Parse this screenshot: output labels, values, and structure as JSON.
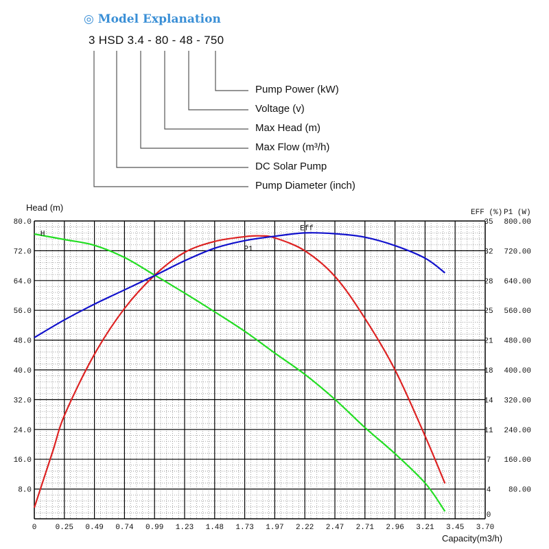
{
  "model": {
    "title": "Model Explanation",
    "code": "3 HSD 3.4 - 80 - 48 - 750",
    "explanations": [
      "Pump Power (kW)",
      "Voltage (v)",
      "Max Head (m)",
      "Max Flow (m³/h)",
      "DC Solar Pump",
      "Pump Diameter (inch)"
    ]
  },
  "chart_data": {
    "type": "line",
    "title": "",
    "xlabel": "Capacity(m3/h)",
    "ylabel": "Head (m)",
    "y2label": "EFF (%)",
    "y3label": "P1 (W)",
    "xlim": [
      0,
      3.7
    ],
    "ylim": [
      0,
      80
    ],
    "y2lim": [
      0,
      35
    ],
    "y3lim": [
      0,
      800
    ],
    "x_ticks": [
      "0",
      "0.25",
      "0.49",
      "0.74",
      "0.99",
      "1.23",
      "1.48",
      "1.73",
      "1.97",
      "2.22",
      "2.47",
      "2.71",
      "2.96",
      "3.21",
      "3.45",
      "3.70"
    ],
    "y_ticks": [
      "80.0",
      "72.0",
      "64.0",
      "56.0",
      "48.0",
      "40.0",
      "32.0",
      "24.0",
      "16.0",
      "8.0"
    ],
    "y2_ticks": [
      "35",
      "32",
      "28",
      "25",
      "21",
      "18",
      "14",
      "11",
      "7",
      "4",
      "0"
    ],
    "y3_ticks": [
      "800.00",
      "720.00",
      "640.00",
      "560.00",
      "480.00",
      "400.00",
      "320.00",
      "240.00",
      "160.00",
      "80.00"
    ],
    "grid": true,
    "series": [
      {
        "name": "H",
        "axis": "head",
        "color": "#22dd22",
        "x": [
          0,
          0.25,
          0.49,
          0.74,
          0.99,
          1.23,
          1.48,
          1.73,
          1.97,
          2.22,
          2.47,
          2.71,
          2.96,
          3.21,
          3.37
        ],
        "values": [
          76.5,
          75.0,
          73.5,
          70.2,
          65.4,
          60.7,
          55.6,
          50.3,
          44.6,
          38.8,
          32.0,
          24.6,
          17.5,
          9.5,
          2.0
        ]
      },
      {
        "name": "P1",
        "axis": "power",
        "color": "#dd2222",
        "x": [
          0,
          0.15,
          0.25,
          0.49,
          0.74,
          0.99,
          1.23,
          1.48,
          1.73,
          1.85,
          1.97,
          2.22,
          2.47,
          2.71,
          2.96,
          3.21,
          3.37
        ],
        "values": [
          30,
          180,
          280,
          440,
          565,
          655,
          715,
          745,
          758,
          760,
          755,
          720,
          650,
          540,
          400,
          220,
          95
        ]
      },
      {
        "name": "Eff",
        "axis": "eff",
        "color": "#1111cc",
        "x": [
          0,
          0.25,
          0.49,
          0.74,
          0.99,
          1.23,
          1.48,
          1.73,
          1.97,
          2.22,
          2.47,
          2.71,
          2.96,
          3.21,
          3.37
        ],
        "values": [
          21.3,
          23.4,
          25.2,
          26.9,
          28.6,
          30.3,
          31.8,
          32.7,
          33.2,
          33.6,
          33.5,
          33.1,
          32.1,
          30.6,
          28.9
        ]
      }
    ],
    "curve_labels": [
      {
        "text": "H",
        "series": "H"
      },
      {
        "text": "P1",
        "series": "P1"
      },
      {
        "text": "Eff",
        "series": "Eff"
      }
    ]
  }
}
